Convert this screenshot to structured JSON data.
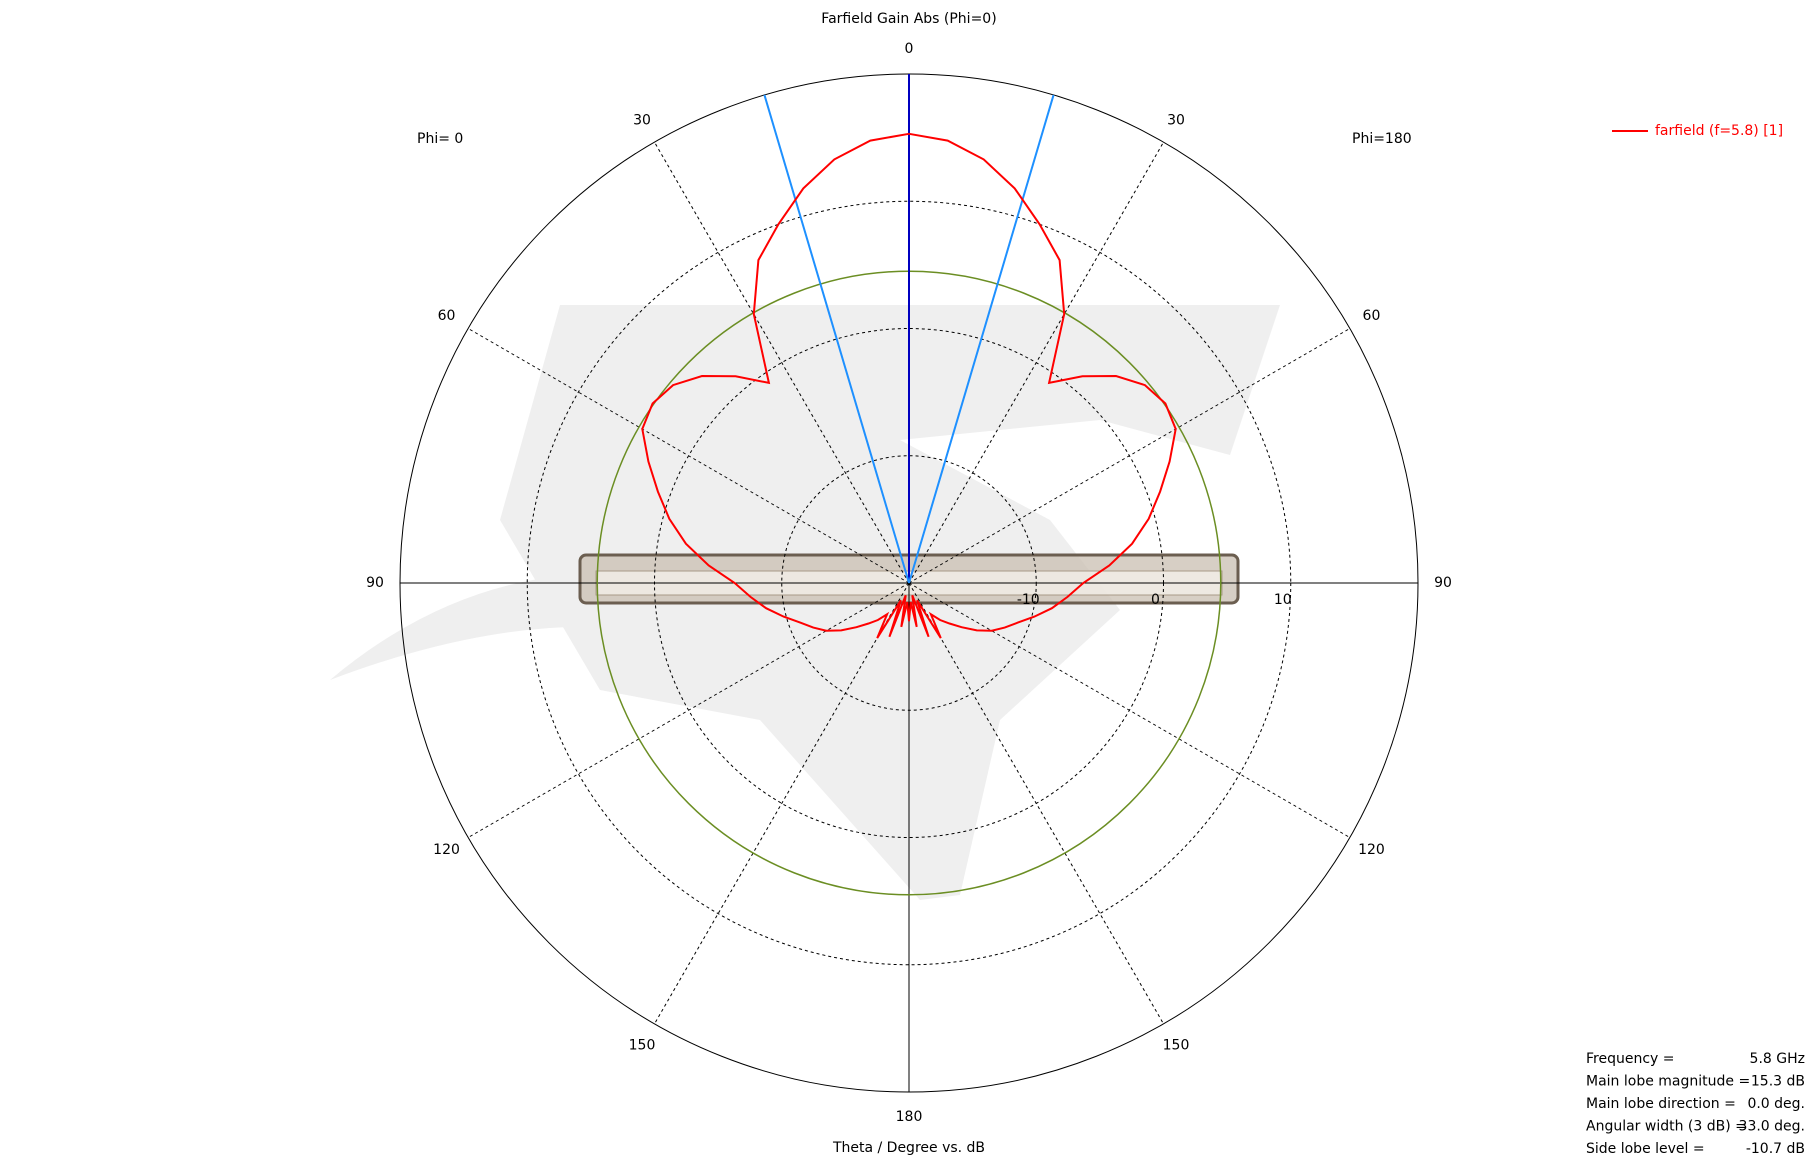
{
  "chart_data": {
    "type": "polar",
    "title": "Farfield Gain Abs (Phi=0)",
    "axis_label": "Theta / Degree vs. dB",
    "left_label": "Phi=  0",
    "right_label": "Phi=180",
    "theta": [
      0,
      5,
      10,
      15,
      20,
      25,
      30,
      35,
      40,
      45,
      50,
      55,
      60,
      65,
      70,
      75,
      80,
      85,
      90,
      95,
      100,
      105,
      110,
      115,
      120,
      125,
      130,
      135,
      140,
      145,
      150,
      155,
      160,
      165,
      170,
      175,
      180
    ],
    "series": [
      {
        "name": "farfield (f=5.8) [1]",
        "color": "#ff0000",
        "values": [
          15.3,
          14.9,
          13.8,
          12.1,
          10,
          8,
          4.4,
          -0.8,
          1.2,
          3,
          4.2,
          4.6,
          4.2,
          2.6,
          1,
          -0.5,
          -2.2,
          -4.2,
          -6.3,
          -7.5,
          -8.6,
          -9.8,
          -10.9,
          -11.7,
          -12.5,
          -13.5,
          -14.6,
          -15.5,
          -16.2,
          -17,
          -15,
          -18.5,
          -15.5,
          -19,
          -16.5,
          -18.5,
          -17
        ]
      }
    ],
    "rlim": [
      -20,
      20
    ],
    "rticks": [
      -10,
      0,
      10
    ],
    "thetaticks": [
      0,
      30,
      60,
      90,
      120,
      150,
      180
    ],
    "level_circle": {
      "value": 4.5,
      "color": "#6b8e23"
    },
    "beam_color": "#1e90ff",
    "direction_color": "#0000c0",
    "legend": "top-right",
    "info": [
      {
        "label": "Frequency =",
        "value": 5.8,
        "value_label": "5.8 GHz"
      },
      {
        "label": "Main lobe magnitude =",
        "value": 15.3,
        "value_label": "15.3 dB"
      },
      {
        "label": "Main lobe direction =",
        "value": 0,
        "value_label": "0.0 deg."
      },
      {
        "label": "Angular width (3 dB) =",
        "value": 33,
        "value_label": "33.0 deg."
      },
      {
        "label": "Side lobe level =",
        "value": -10.7,
        "value_label": "-10.7 dB"
      }
    ]
  }
}
